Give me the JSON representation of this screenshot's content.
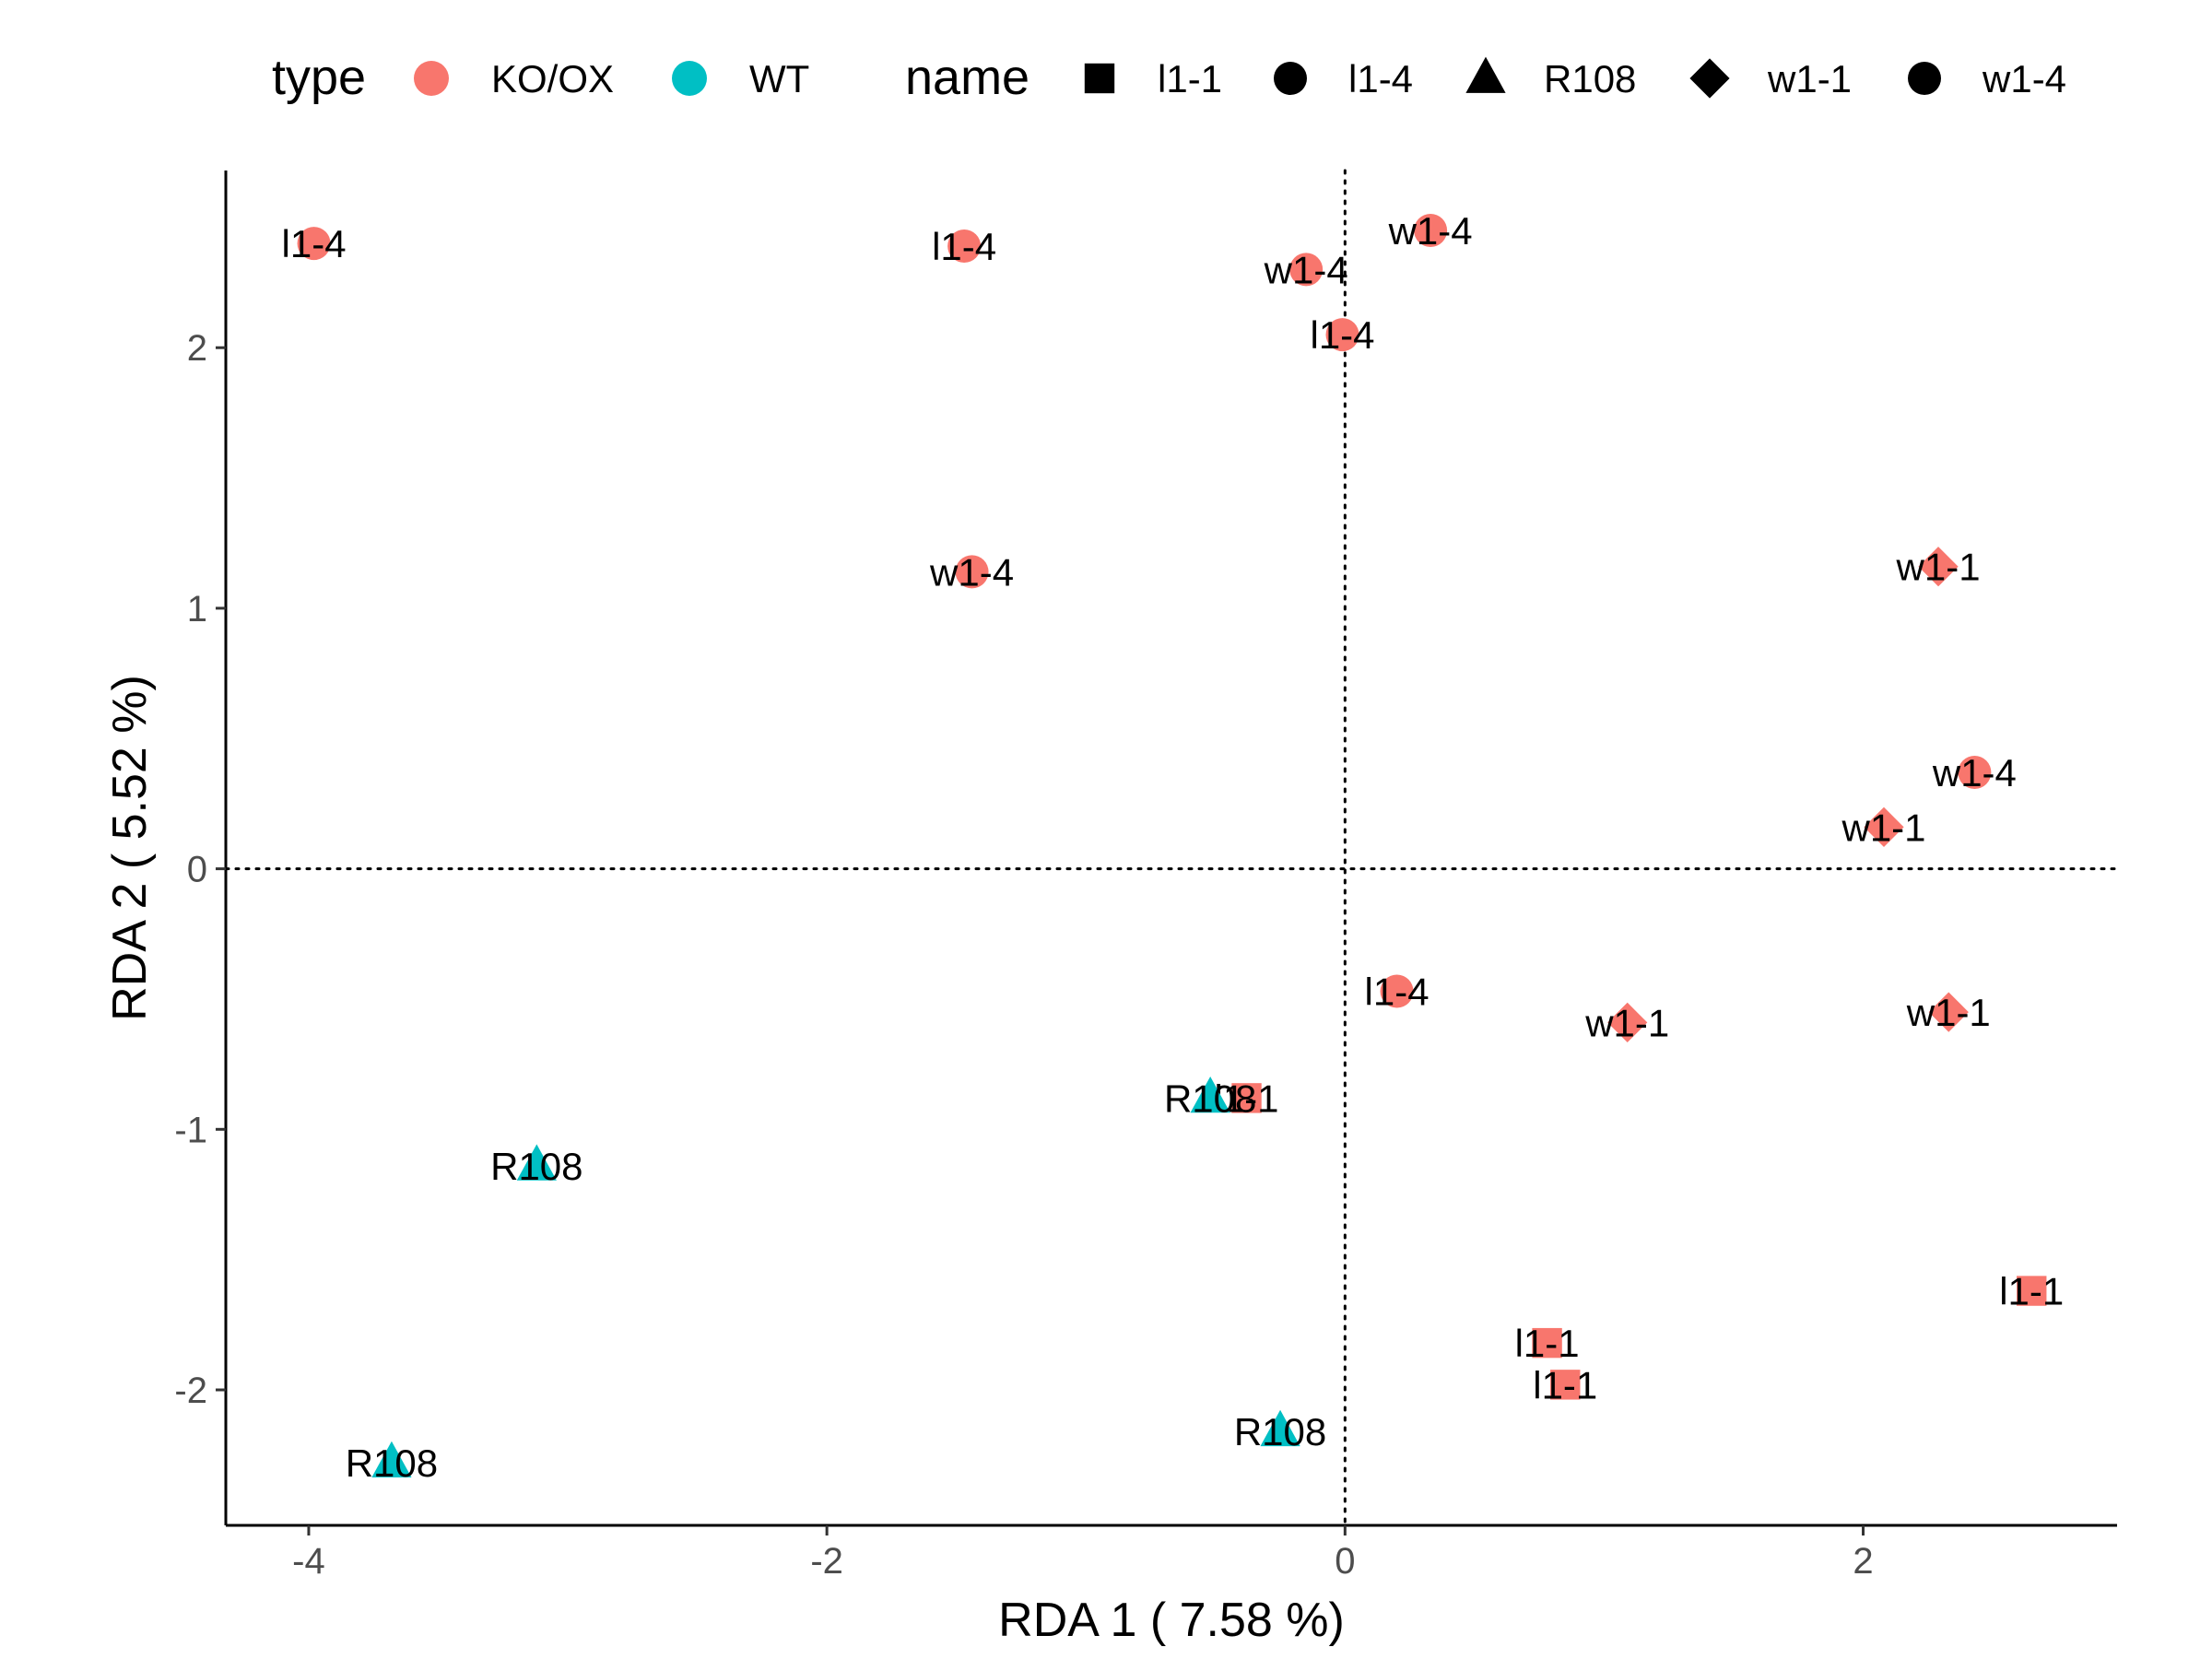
{
  "chart_data": {
    "type": "scatter",
    "xlabel": "RDA 1 ( 7.58 %)",
    "ylabel": "RDA 2 ( 5.52 %)",
    "xlim": [
      -4.32,
      2.98
    ],
    "ylim": [
      -2.52,
      2.68
    ],
    "x_ticks": [
      -4,
      -2,
      0,
      2
    ],
    "y_ticks": [
      -2,
      -1,
      0,
      1,
      2
    ],
    "x_tick_labels": [
      "-4",
      "-2",
      "0",
      "2"
    ],
    "y_tick_labels": [
      "-2",
      "-1",
      "0",
      "1",
      "2"
    ],
    "reference_lines": {
      "x": 0,
      "y": 0,
      "style": "dotted"
    },
    "grid": false,
    "legend": {
      "position": "top",
      "type_title": "type",
      "type_entries": [
        {
          "label": "KO/OX",
          "color": "#F8766D"
        },
        {
          "label": "WT",
          "color": "#00BFC4"
        }
      ],
      "name_title": "name",
      "name_entries": [
        {
          "label": "l1-1",
          "shape": "square"
        },
        {
          "label": "l1-4",
          "shape": "circle"
        },
        {
          "label": "R108",
          "shape": "triangle"
        },
        {
          "label": "w1-1",
          "shape": "diamond"
        },
        {
          "label": "w1-4",
          "shape": "circle"
        }
      ]
    },
    "colors": {
      "KO/OX": "#F8766D",
      "WT": "#00BFC4"
    },
    "points": [
      {
        "x": -3.98,
        "y": 2.4,
        "type": "KO/OX",
        "name": "l1-4",
        "shape": "circle"
      },
      {
        "x": -1.47,
        "y": 2.39,
        "type": "KO/OX",
        "name": "l1-4",
        "shape": "circle"
      },
      {
        "x": -0.15,
        "y": 2.3,
        "type": "KO/OX",
        "name": "w1-4",
        "shape": "circle"
      },
      {
        "x": 0.33,
        "y": 2.45,
        "type": "KO/OX",
        "name": "w1-4",
        "shape": "circle"
      },
      {
        "x": -0.01,
        "y": 2.05,
        "type": "KO/OX",
        "name": "l1-4",
        "shape": "circle"
      },
      {
        "x": -1.44,
        "y": 1.14,
        "type": "KO/OX",
        "name": "w1-4",
        "shape": "circle"
      },
      {
        "x": 2.29,
        "y": 1.16,
        "type": "KO/OX",
        "name": "w1-1",
        "shape": "diamond"
      },
      {
        "x": 2.43,
        "y": 0.37,
        "type": "KO/OX",
        "name": "w1-4",
        "shape": "circle"
      },
      {
        "x": 2.08,
        "y": 0.16,
        "type": "KO/OX",
        "name": "w1-1",
        "shape": "diamond"
      },
      {
        "x": 0.2,
        "y": -0.47,
        "type": "KO/OX",
        "name": "l1-4",
        "shape": "circle"
      },
      {
        "x": 1.09,
        "y": -0.59,
        "type": "KO/OX",
        "name": "w1-1",
        "shape": "diamond"
      },
      {
        "x": 2.33,
        "y": -0.55,
        "type": "KO/OX",
        "name": "w1-1",
        "shape": "diamond"
      },
      {
        "x": -0.38,
        "y": -0.88,
        "type": "KO/OX",
        "name": "l1-1",
        "shape": "square"
      },
      {
        "x": -0.52,
        "y": -0.88,
        "type": "WT",
        "name": "R108",
        "shape": "triangle"
      },
      {
        "x": -3.12,
        "y": -1.14,
        "type": "WT",
        "name": "R108",
        "shape": "triangle"
      },
      {
        "x": 2.65,
        "y": -1.62,
        "type": "KO/OX",
        "name": "l1-1",
        "shape": "square"
      },
      {
        "x": 0.78,
        "y": -1.82,
        "type": "KO/OX",
        "name": "l1-1",
        "shape": "square"
      },
      {
        "x": 0.85,
        "y": -1.98,
        "type": "KO/OX",
        "name": "l1-1",
        "shape": "square"
      },
      {
        "x": -0.25,
        "y": -2.16,
        "type": "WT",
        "name": "R108",
        "shape": "triangle"
      },
      {
        "x": -3.68,
        "y": -2.28,
        "type": "WT",
        "name": "R108",
        "shape": "triangle"
      }
    ]
  }
}
